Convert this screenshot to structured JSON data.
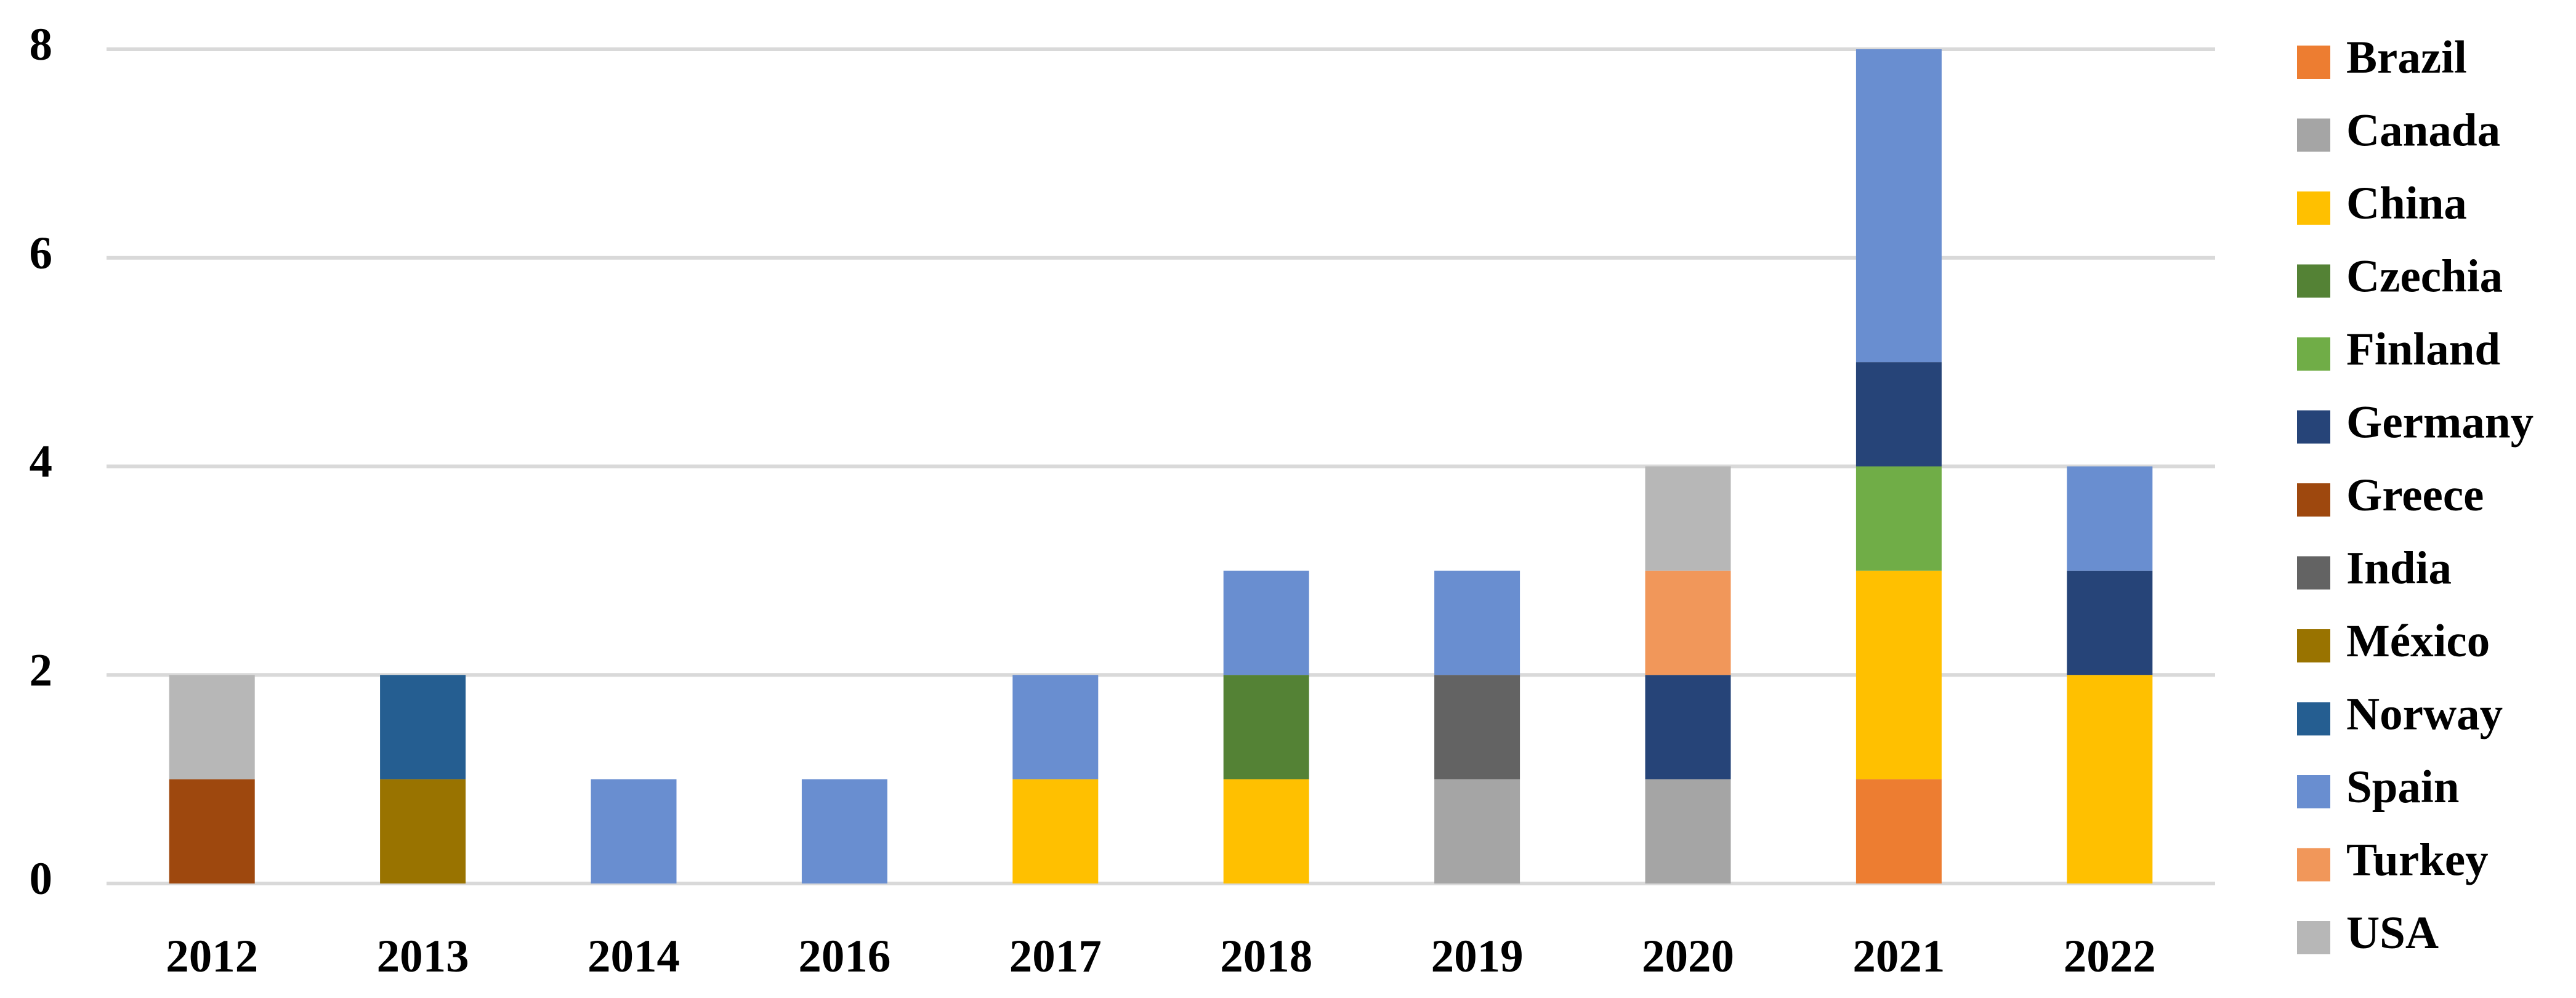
{
  "chart_data": {
    "type": "stacked_bar",
    "categories": [
      "2012",
      "2013",
      "2014",
      "2016",
      "2017",
      "2018",
      "2019",
      "2020",
      "2021",
      "2022"
    ],
    "series": [
      {
        "name": "Brazil",
        "color": "#ed7d31",
        "values": [
          0,
          0,
          0,
          0,
          0,
          0,
          0,
          0,
          1,
          0
        ]
      },
      {
        "name": "Canada",
        "color": "#a5a5a5",
        "values": [
          0,
          0,
          0,
          0,
          0,
          0,
          1,
          1,
          0,
          0
        ]
      },
      {
        "name": "China",
        "color": "#ffc000",
        "values": [
          0,
          0,
          0,
          0,
          1,
          1,
          0,
          0,
          2,
          2
        ]
      },
      {
        "name": "Czechia",
        "color": "#548235",
        "values": [
          0,
          0,
          0,
          0,
          0,
          1,
          0,
          0,
          0,
          0
        ]
      },
      {
        "name": "Finland",
        "color": "#70ad47",
        "values": [
          0,
          0,
          0,
          0,
          0,
          0,
          0,
          0,
          1,
          0
        ]
      },
      {
        "name": "Germany",
        "color": "#264478",
        "values": [
          0,
          0,
          0,
          0,
          0,
          0,
          0,
          1,
          1,
          1
        ]
      },
      {
        "name": "Greece",
        "color": "#9e480e",
        "values": [
          1,
          0,
          0,
          0,
          0,
          0,
          0,
          0,
          0,
          0
        ]
      },
      {
        "name": "India",
        "color": "#636363",
        "values": [
          0,
          0,
          0,
          0,
          0,
          0,
          1,
          0,
          0,
          0
        ]
      },
      {
        "name": "México",
        "color": "#997300",
        "values": [
          0,
          1,
          0,
          0,
          0,
          0,
          0,
          0,
          0,
          0
        ]
      },
      {
        "name": "Norway",
        "color": "#255e91",
        "values": [
          0,
          1,
          0,
          0,
          0,
          0,
          0,
          0,
          0,
          0
        ]
      },
      {
        "name": "Spain",
        "color": "#698ed0",
        "values": [
          0,
          0,
          1,
          1,
          1,
          1,
          1,
          0,
          3,
          1
        ]
      },
      {
        "name": "Turkey",
        "color": "#f1975a",
        "values": [
          0,
          0,
          0,
          0,
          0,
          0,
          0,
          1,
          0,
          0
        ]
      },
      {
        "name": "USA",
        "color": "#b7b7b7",
        "values": [
          1,
          0,
          0,
          0,
          0,
          0,
          0,
          1,
          0,
          0
        ]
      }
    ],
    "ylim": [
      0,
      8
    ],
    "yticks": [
      0,
      2,
      4,
      6,
      8
    ],
    "grid": true,
    "legend": "right"
  }
}
